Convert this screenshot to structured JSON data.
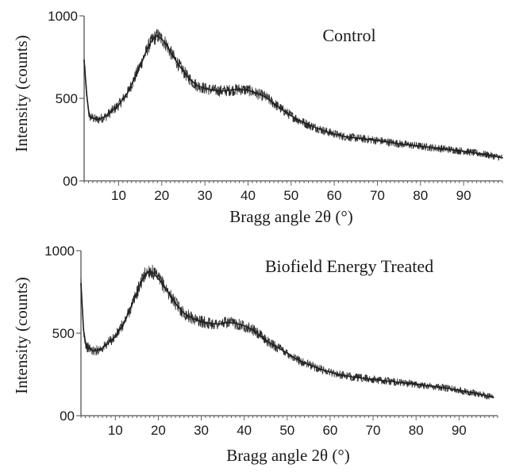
{
  "chart_data": [
    {
      "type": "line",
      "title": "Control",
      "xlabel": "Bragg angle 2θ (°)",
      "ylabel": "Intensity (counts)",
      "xlim": [
        2,
        99
      ],
      "ylim": [
        0,
        1000
      ],
      "x_ticks": [
        10,
        20,
        30,
        40,
        50,
        60,
        70,
        80,
        90
      ],
      "y_ticks": [
        {
          "value": 0,
          "label": "00"
        },
        {
          "value": 500,
          "label": "500"
        },
        {
          "value": 1000,
          "label": "1000"
        }
      ],
      "grid": false,
      "color": "#2b2b2b",
      "x": [
        2,
        2.6,
        3.2,
        5,
        7,
        10,
        12,
        14,
        16,
        17,
        18,
        19,
        20,
        21,
        22,
        24,
        26,
        28,
        30,
        32,
        34,
        36,
        38,
        40,
        42,
        44,
        46,
        48,
        50,
        52,
        54,
        56,
        58,
        60,
        62,
        65,
        70,
        75,
        80,
        85,
        90,
        95,
        99
      ],
      "y": [
        730,
        520,
        390,
        370,
        390,
        460,
        530,
        640,
        760,
        820,
        860,
        880,
        860,
        830,
        780,
        700,
        630,
        580,
        560,
        550,
        545,
        550,
        555,
        550,
        530,
        510,
        470,
        430,
        395,
        365,
        340,
        320,
        300,
        285,
        270,
        260,
        245,
        225,
        210,
        195,
        180,
        160,
        140
      ]
    },
    {
      "type": "line",
      "title": "Biofield Energy Treated",
      "xlabel": "Bragg angle 2θ (°)",
      "ylabel": "Intensity (counts)",
      "xlim": [
        2,
        99
      ],
      "ylim": [
        0,
        1000
      ],
      "x_ticks": [
        10,
        20,
        30,
        40,
        50,
        60,
        70,
        80,
        90
      ],
      "y_ticks": [
        {
          "value": 0,
          "label": "00"
        },
        {
          "value": 500,
          "label": "500"
        },
        {
          "value": 1000,
          "label": "1000"
        }
      ],
      "grid": false,
      "color": "#2b2b2b",
      "x": [
        2,
        2.6,
        3.2,
        5,
        7,
        10,
        12,
        14,
        16,
        17,
        18,
        19,
        20,
        21,
        22,
        24,
        26,
        28,
        30,
        32,
        34,
        36,
        38,
        40,
        42,
        44,
        46,
        48,
        50,
        52,
        54,
        56,
        58,
        60,
        62,
        65,
        70,
        75,
        80,
        85,
        90,
        95,
        98
      ],
      "y": [
        800,
        520,
        420,
        390,
        410,
        480,
        560,
        680,
        810,
        860,
        880,
        860,
        830,
        800,
        760,
        680,
        620,
        590,
        570,
        560,
        555,
        565,
        560,
        545,
        520,
        480,
        440,
        410,
        380,
        345,
        320,
        300,
        280,
        265,
        250,
        235,
        220,
        205,
        190,
        175,
        155,
        130,
        110
      ]
    }
  ]
}
